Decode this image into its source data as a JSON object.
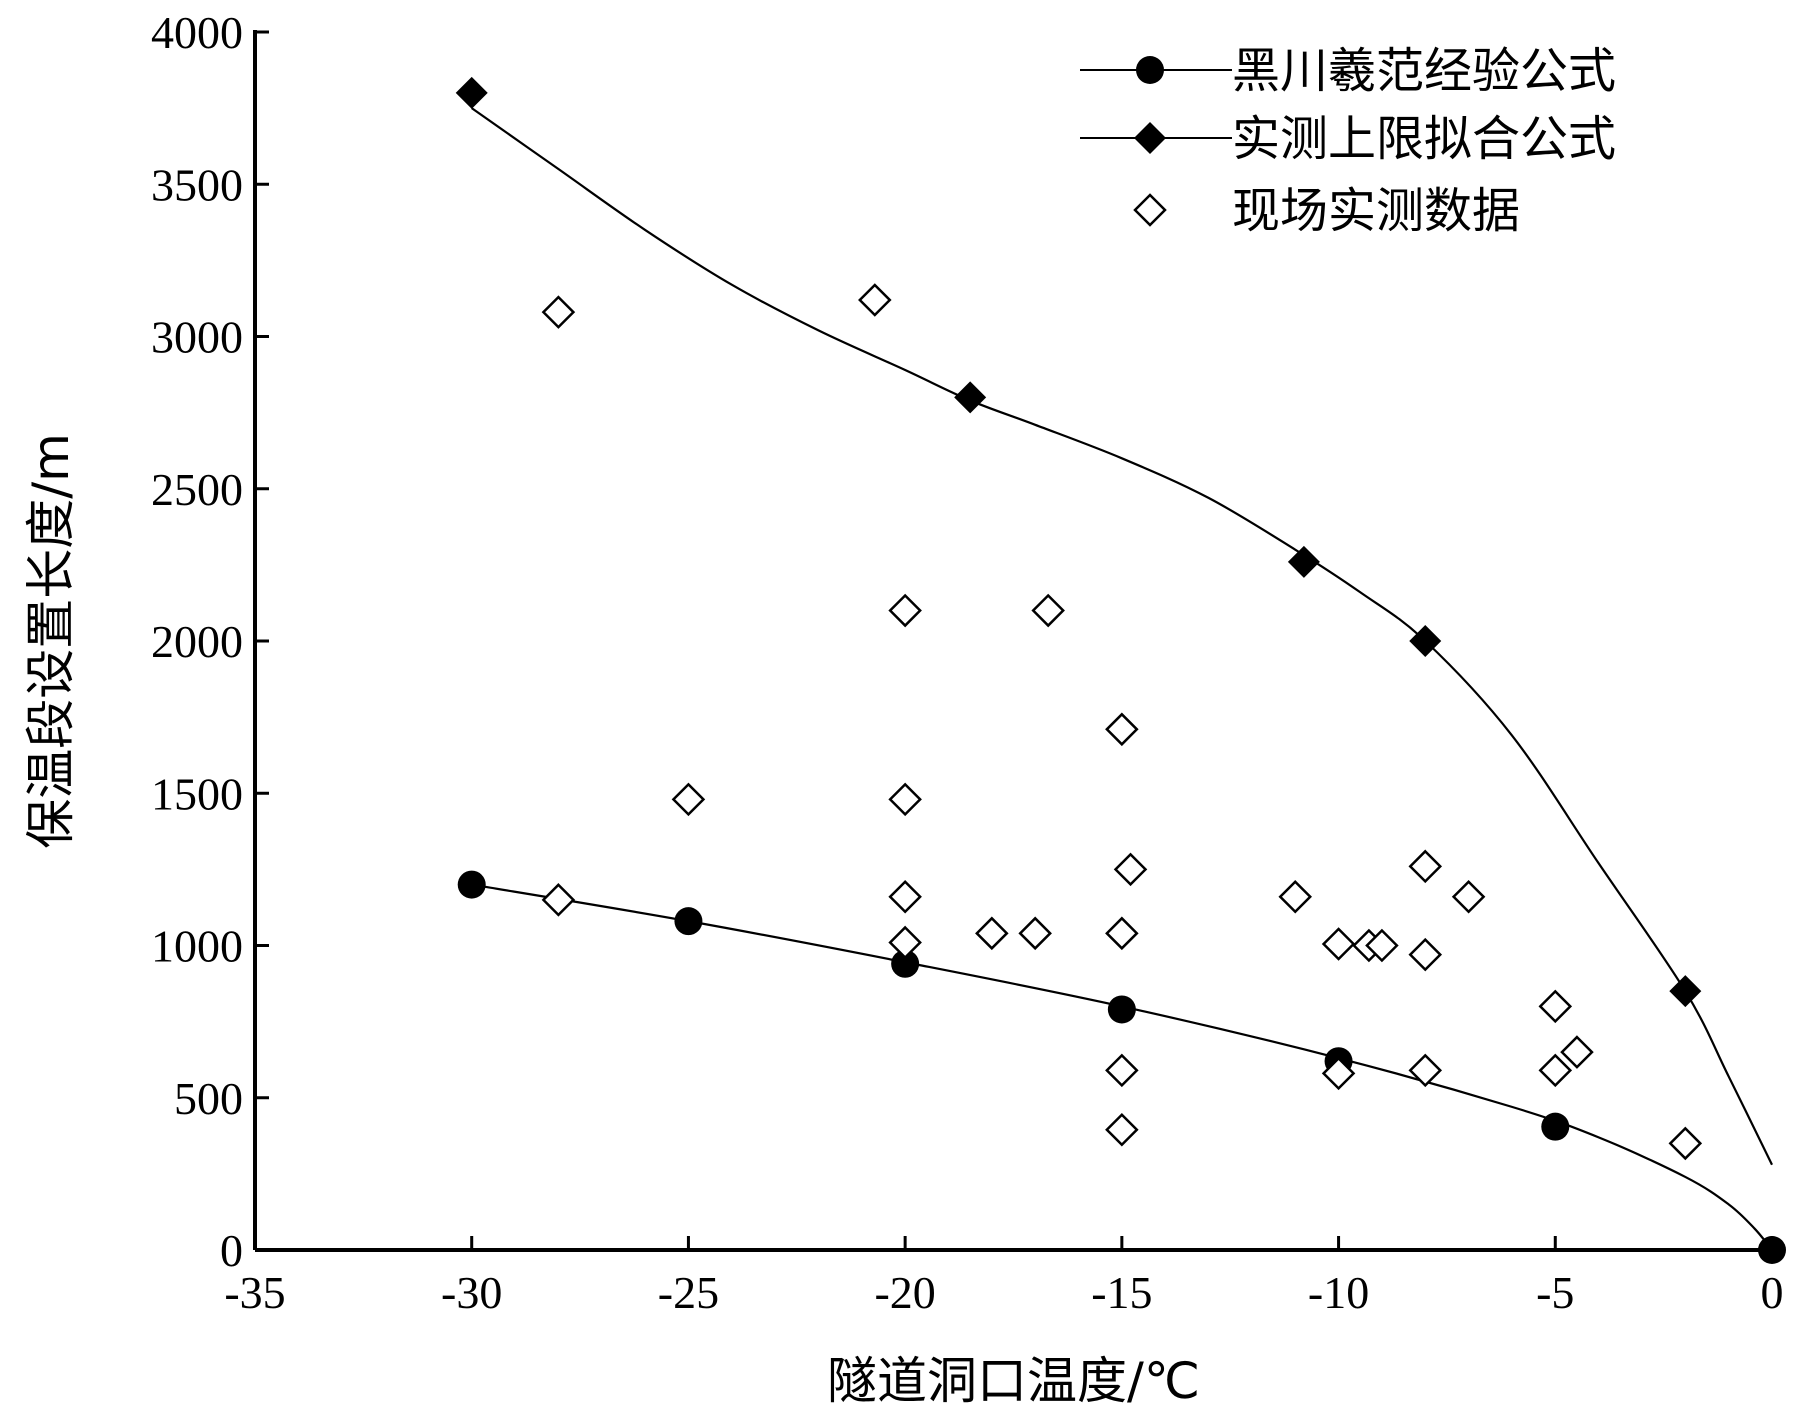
{
  "chart_data": {
    "type": "scatter",
    "xlabel": "隧道洞口温度/℃",
    "ylabel": "保温段设置长度/m",
    "xlim": [
      -35,
      0
    ],
    "ylim": [
      0,
      4000
    ],
    "xticks": [
      -35,
      -30,
      -25,
      -20,
      -15,
      -10,
      -5,
      0
    ],
    "yticks": [
      0,
      500,
      1000,
      1500,
      2000,
      2500,
      3000,
      3500,
      4000
    ],
    "xtick_labels": [
      "-35",
      "-30",
      "-25",
      "-20",
      "-15",
      "-10",
      "-5",
      "0"
    ],
    "ytick_labels": [
      "0",
      "500",
      "1000",
      "1500",
      "2000",
      "2500",
      "3000",
      "3500",
      "4000"
    ],
    "grid": false,
    "legend_position": "top-right",
    "series": [
      {
        "name": "黑川羲范经验公式",
        "marker": "filled-circle",
        "line": true,
        "points": [
          [
            -30,
            1200
          ],
          [
            -25,
            1080
          ],
          [
            -20,
            940
          ],
          [
            -15,
            790
          ],
          [
            -10,
            620
          ],
          [
            -5,
            405
          ],
          [
            0,
            0
          ]
        ],
        "curve": [
          [
            -30,
            1200
          ],
          [
            -25,
            1080
          ],
          [
            -20,
            945
          ],
          [
            -15,
            800
          ],
          [
            -10,
            630
          ],
          [
            -6,
            470
          ],
          [
            -4,
            370
          ],
          [
            -2,
            240
          ],
          [
            -1,
            150
          ],
          [
            -0.4,
            70
          ],
          [
            0,
            0
          ]
        ]
      },
      {
        "name": "实测上限拟合公式",
        "marker": "filled-diamond",
        "line": true,
        "points": [
          [
            -30,
            3800
          ],
          [
            -18.5,
            2800
          ],
          [
            -10.8,
            2260
          ],
          [
            -8,
            2000
          ],
          [
            -2,
            850
          ]
        ],
        "curve": [
          [
            -30,
            3750
          ],
          [
            -28,
            3550
          ],
          [
            -26,
            3350
          ],
          [
            -24,
            3170
          ],
          [
            -22,
            3020
          ],
          [
            -20,
            2890
          ],
          [
            -18.5,
            2790
          ],
          [
            -17,
            2710
          ],
          [
            -15,
            2600
          ],
          [
            -13,
            2470
          ],
          [
            -11,
            2300
          ],
          [
            -9.5,
            2160
          ],
          [
            -8,
            2000
          ],
          [
            -6,
            1690
          ],
          [
            -4,
            1270
          ],
          [
            -2,
            850
          ],
          [
            -1,
            570
          ],
          [
            0,
            280
          ]
        ]
      },
      {
        "name": "现场实测数据",
        "marker": "open-diamond",
        "line": false,
        "points": [
          [
            -28,
            3080
          ],
          [
            -20.7,
            3120
          ],
          [
            -20,
            2100
          ],
          [
            -16.7,
            2100
          ],
          [
            -15,
            1710
          ],
          [
            -25,
            1480
          ],
          [
            -20,
            1480
          ],
          [
            -14.8,
            1250
          ],
          [
            -28,
            1150
          ],
          [
            -20,
            1160
          ],
          [
            -20,
            1010
          ],
          [
            -18,
            1040
          ],
          [
            -17,
            1040
          ],
          [
            -15,
            1040
          ],
          [
            -11,
            1160
          ],
          [
            -10,
            1005
          ],
          [
            -9.3,
            1000
          ],
          [
            -9,
            1000
          ],
          [
            -8,
            970
          ],
          [
            -8,
            1260
          ],
          [
            -7,
            1160
          ],
          [
            -15,
            590
          ],
          [
            -15,
            395
          ],
          [
            -10,
            580
          ],
          [
            -8,
            590
          ],
          [
            -5,
            800
          ],
          [
            -5,
            590
          ],
          [
            -4.5,
            650
          ],
          [
            -2,
            350
          ]
        ]
      }
    ]
  }
}
